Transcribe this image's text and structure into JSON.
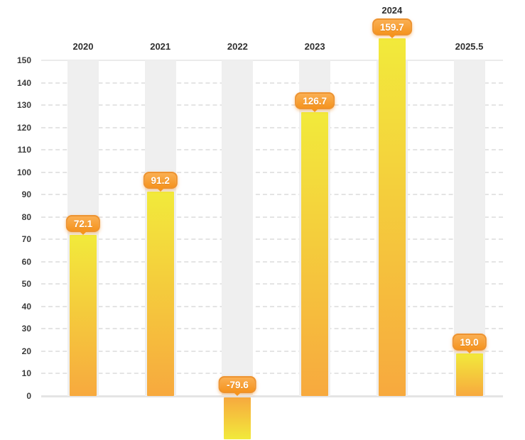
{
  "chart_data": {
    "type": "bar",
    "title": "",
    "xlabel": "",
    "ylabel": "",
    "categories": [
      "2020",
      "2021",
      "2022",
      "2023",
      "2024",
      "2025.5"
    ],
    "values": [
      72.1,
      91.2,
      -79.6,
      126.7,
      159.7,
      19.0
    ],
    "value_labels": [
      "72.1",
      "91.2",
      "-79.6",
      "126.7",
      "159.7",
      "19.0"
    ],
    "ylim": [
      0,
      150
    ],
    "y_ticks": [
      0,
      10,
      20,
      30,
      40,
      50,
      60,
      70,
      80,
      90,
      100,
      110,
      120,
      130,
      140,
      150
    ],
    "grid": "horizontal-dashed",
    "legend_position": "none",
    "notes": "2024 bar overflows above axis max; 2022 bar is negative and clipped at bottom edge",
    "colors": {
      "bar_tip_yellow": "#F2EA3B",
      "bar_base_orange": "#F7A93E",
      "badge_fill_top": "#FAAF52",
      "badge_fill_bottom": "#F5941F",
      "badge_border": "#ED9330",
      "badge_text": "#FFFFFF",
      "column_band": "#EFEFEF",
      "gridline": "#E4E4E4",
      "axis_text": "#3B3B3B",
      "category_text": "#2F2F2F",
      "background": "#FFFFFF"
    }
  }
}
